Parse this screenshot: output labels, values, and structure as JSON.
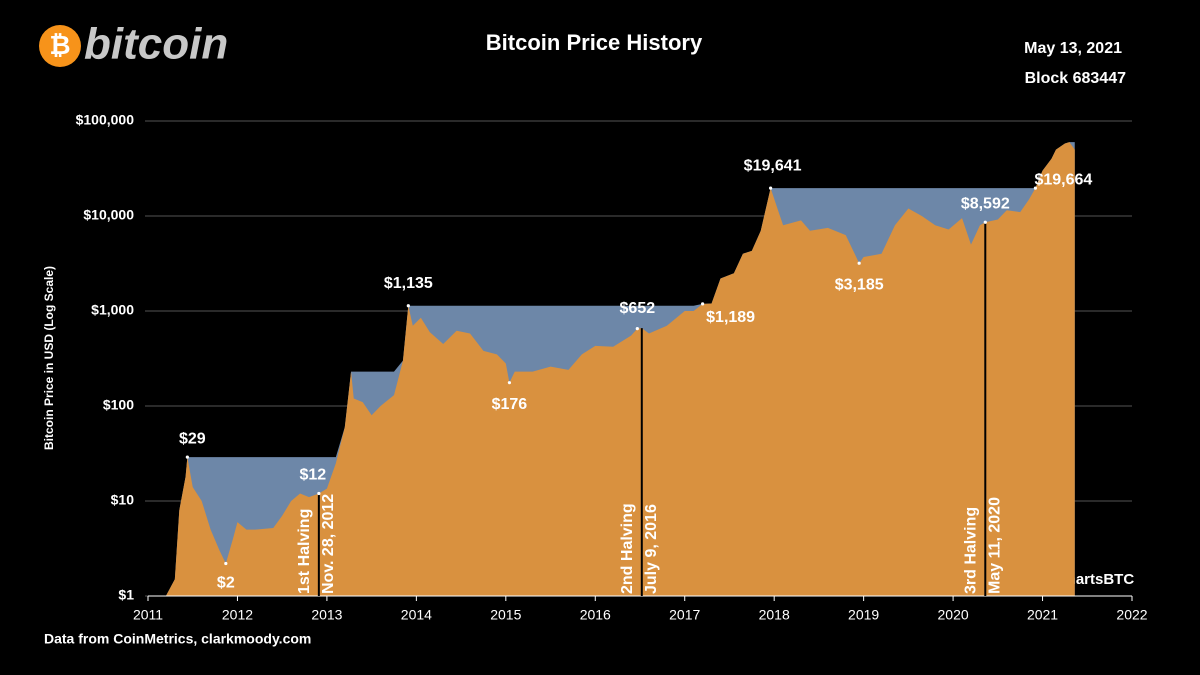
{
  "chart_data": {
    "type": "area",
    "logo": "bitcoin",
    "title": "Bitcoin Price History",
    "date": "May 13, 2021",
    "block": "Block 683447",
    "y_label": "Bitcoin Price in USD (Log Scale)",
    "source": "Data from CoinMetrics,  clarkmoody.com",
    "credit": "ChartsBTC",
    "log_y": true,
    "grid": true,
    "xlim": [
      2011,
      2022
    ],
    "xticks": [
      2011,
      2012,
      2013,
      2014,
      2015,
      2016,
      2017,
      2018,
      2019,
      2020,
      2021,
      2022
    ],
    "ylim": [
      1,
      100000
    ],
    "yticks": [
      {
        "value": 1,
        "label": "$1"
      },
      {
        "value": 10,
        "label": "$10"
      },
      {
        "value": 100,
        "label": "$100"
      },
      {
        "value": 1000,
        "label": "$1,000"
      },
      {
        "value": 10000,
        "label": "$10,000"
      },
      {
        "value": 100000,
        "label": "$100,000"
      }
    ],
    "x": [
      2011.0,
      2011.2,
      2011.3,
      2011.35,
      2011.42,
      2011.44,
      2011.5,
      2011.6,
      2011.7,
      2011.8,
      2011.87,
      2011.95,
      2012.0,
      2012.1,
      2012.2,
      2012.4,
      2012.5,
      2012.6,
      2012.7,
      2012.8,
      2012.91,
      2013.0,
      2013.1,
      2013.2,
      2013.27,
      2013.3,
      2013.4,
      2013.5,
      2013.6,
      2013.75,
      2013.85,
      2013.91,
      2013.96,
      2014.05,
      2014.15,
      2014.3,
      2014.45,
      2014.6,
      2014.75,
      2014.9,
      2015.0,
      2015.04,
      2015.1,
      2015.3,
      2015.5,
      2015.7,
      2015.85,
      2016.0,
      2016.2,
      2016.4,
      2016.47,
      2016.52,
      2016.6,
      2016.8,
      2017.0,
      2017.1,
      2017.2,
      2017.3,
      2017.4,
      2017.55,
      2017.65,
      2017.75,
      2017.85,
      2017.96,
      2018.05,
      2018.1,
      2018.3,
      2018.4,
      2018.6,
      2018.8,
      2018.95,
      2019.0,
      2019.2,
      2019.35,
      2019.5,
      2019.65,
      2019.8,
      2019.95,
      2020.1,
      2020.2,
      2020.3,
      2020.36,
      2020.5,
      2020.6,
      2020.75,
      2020.85,
      2020.92,
      2021.0,
      2021.1,
      2021.15,
      2021.25,
      2021.3,
      2021.36
    ],
    "series": [
      {
        "color": "#d9913f",
        "ath_color": "#6d87a8",
        "values": [
          1,
          1,
          1.5,
          8,
          18,
          29,
          14,
          10,
          5,
          3,
          2.2,
          4,
          6,
          5,
          5,
          5.2,
          7,
          10,
          12,
          11,
          12,
          13.5,
          25,
          60,
          230,
          120,
          110,
          80,
          100,
          130,
          300,
          1135,
          700,
          850,
          600,
          450,
          620,
          580,
          380,
          350,
          280,
          176,
          230,
          230,
          260,
          240,
          350,
          430,
          420,
          550,
          652,
          660,
          580,
          700,
          1000,
          1000,
          1189,
          1200,
          2200,
          2500,
          4000,
          4300,
          7000,
          19641,
          11000,
          8000,
          9000,
          7000,
          7500,
          6300,
          3185,
          3700,
          4000,
          8000,
          12000,
          10000,
          8000,
          7200,
          9500,
          5000,
          8000,
          8592,
          9200,
          11500,
          11000,
          15000,
          19664,
          30000,
          40000,
          50000,
          58000,
          60000,
          50000
        ]
      }
    ],
    "annotations": [
      {
        "label": "$29",
        "x": 2011.44,
        "y": 29
      },
      {
        "label": "$2",
        "x": 2011.87,
        "y": 2.2
      },
      {
        "label": "$12",
        "x": 2012.91,
        "y": 12
      },
      {
        "label": "$1,135",
        "x": 2013.91,
        "y": 1135
      },
      {
        "label": "$176",
        "x": 2015.04,
        "y": 176
      },
      {
        "label": "$652",
        "x": 2016.47,
        "y": 652
      },
      {
        "label": "$1,189",
        "x": 2017.2,
        "y": 1189
      },
      {
        "label": "$19,641",
        "x": 2017.96,
        "y": 19641
      },
      {
        "label": "$3,185",
        "x": 2018.95,
        "y": 3185
      },
      {
        "label": "$8,592",
        "x": 2020.36,
        "y": 8592
      },
      {
        "label": "$19,664",
        "x": 2020.92,
        "y": 19664
      }
    ],
    "halvings": [
      {
        "name": "1st Halving",
        "date": "Nov. 28, 2012",
        "x": 2012.91,
        "y": 12
      },
      {
        "name": "2nd Halving",
        "date": "July 9, 2016",
        "x": 2016.52,
        "y": 660
      },
      {
        "name": "3rd Halving",
        "date": "May 11, 2020",
        "x": 2020.36,
        "y": 8592
      }
    ]
  }
}
